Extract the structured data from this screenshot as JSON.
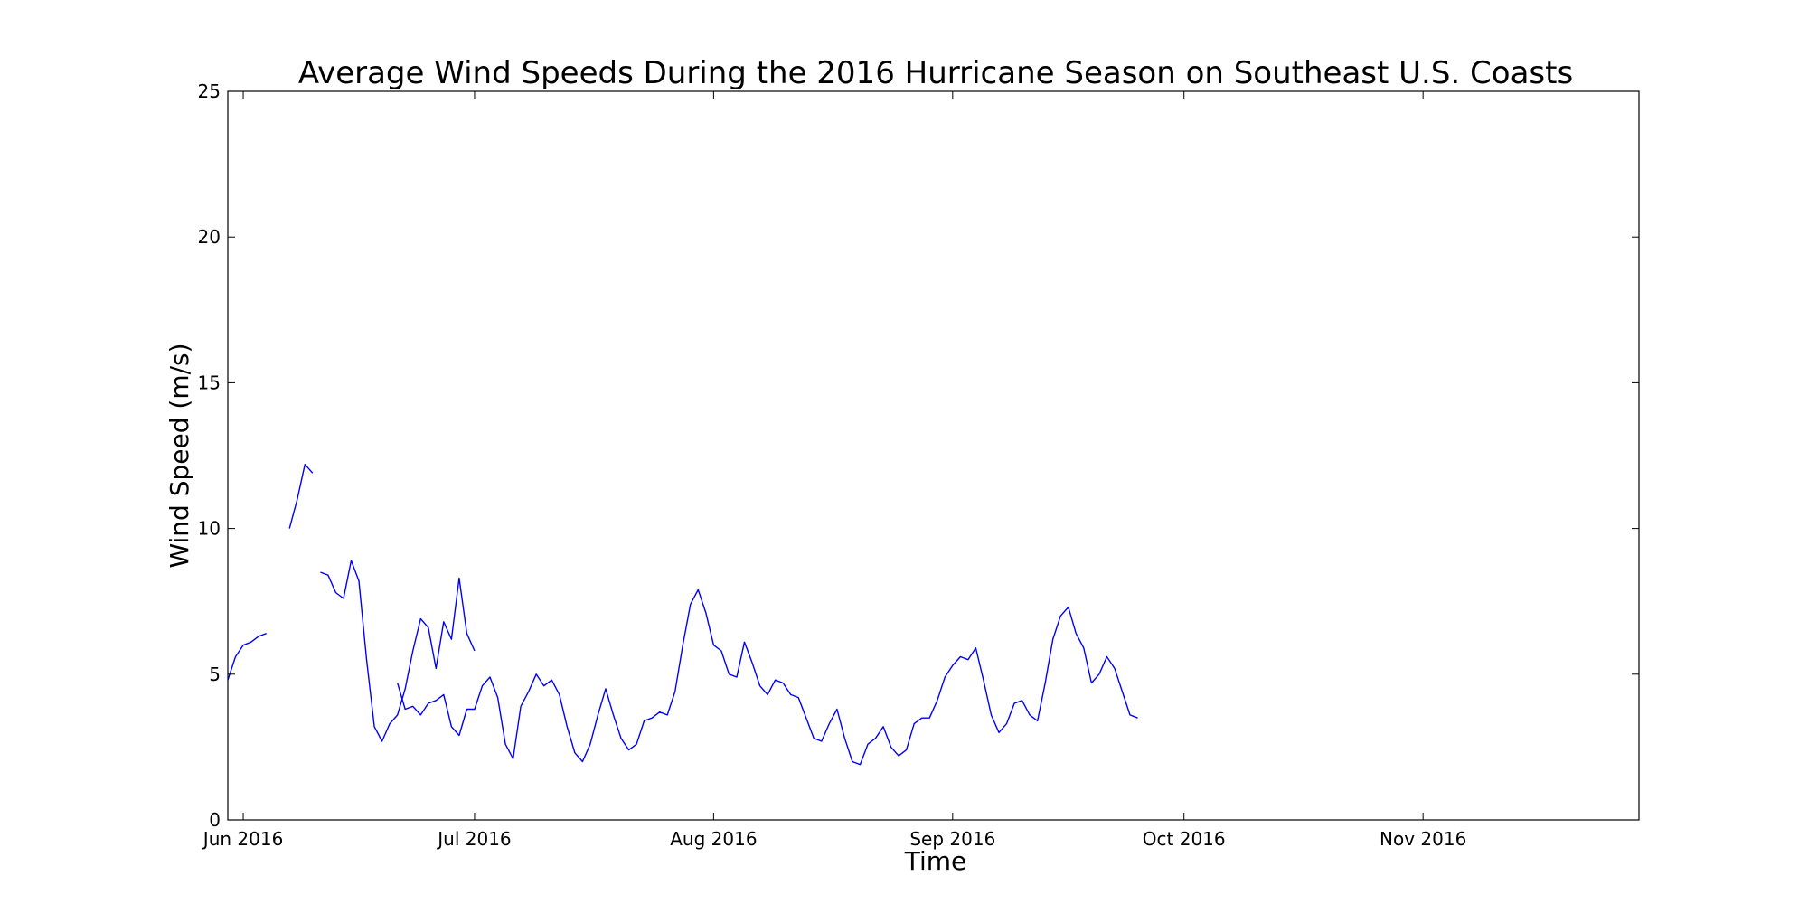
{
  "chart_data": {
    "type": "line",
    "title": "Average Wind Speeds During the 2016 Hurricane Season on Southeast U.S. Coasts",
    "xlabel": "Time",
    "ylabel": "Wind Speed (m/s)",
    "xlim": [
      "2016-05-30",
      "2016-11-29"
    ],
    "ylim": [
      0,
      25
    ],
    "grid": false,
    "line_color": "#0000ff",
    "x_ticks": [
      {
        "date": "2016-06-01",
        "label": "Jun 2016"
      },
      {
        "date": "2016-07-01",
        "label": "Jul 2016"
      },
      {
        "date": "2016-08-01",
        "label": "Aug 2016"
      },
      {
        "date": "2016-09-01",
        "label": "Sep 2016"
      },
      {
        "date": "2016-10-01",
        "label": "Oct 2016"
      },
      {
        "date": "2016-11-01",
        "label": "Nov 2016"
      }
    ],
    "y_ticks": [
      0,
      5,
      10,
      15,
      20,
      25
    ],
    "series": [
      {
        "segments": [
          [
            [
              "2016-05-30",
              4.8
            ],
            [
              "2016-05-31",
              5.6
            ],
            [
              "2016-06-01",
              6.0
            ],
            [
              "2016-06-02",
              6.1
            ],
            [
              "2016-06-03",
              6.3
            ],
            [
              "2016-06-04",
              6.4
            ]
          ],
          [
            [
              "2016-06-07",
              10.0
            ],
            [
              "2016-06-08",
              11.0
            ],
            [
              "2016-06-09",
              12.2
            ],
            [
              "2016-06-10",
              11.9
            ]
          ],
          [
            [
              "2016-06-11",
              8.5
            ],
            [
              "2016-06-12",
              8.4
            ],
            [
              "2016-06-13",
              7.8
            ],
            [
              "2016-06-14",
              7.6
            ],
            [
              "2016-06-15",
              8.9
            ],
            [
              "2016-06-16",
              8.2
            ],
            [
              "2016-06-17",
              5.5
            ],
            [
              "2016-06-18",
              3.2
            ],
            [
              "2016-06-19",
              2.7
            ],
            [
              "2016-06-20",
              3.3
            ],
            [
              "2016-06-21",
              3.6
            ],
            [
              "2016-06-22",
              4.5
            ],
            [
              "2016-06-23",
              5.8
            ],
            [
              "2016-06-24",
              6.9
            ],
            [
              "2016-06-25",
              6.6
            ],
            [
              "2016-06-26",
              5.2
            ],
            [
              "2016-06-27",
              6.8
            ],
            [
              "2016-06-28",
              6.2
            ],
            [
              "2016-06-29",
              8.3
            ],
            [
              "2016-06-30",
              6.4
            ],
            [
              "2016-07-01",
              5.8
            ]
          ],
          [
            [
              "2016-06-21",
              4.7
            ],
            [
              "2016-06-22",
              3.8
            ],
            [
              "2016-06-23",
              3.9
            ],
            [
              "2016-06-24",
              3.6
            ],
            [
              "2016-06-25",
              4.0
            ],
            [
              "2016-06-26",
              4.1
            ],
            [
              "2016-06-27",
              4.3
            ],
            [
              "2016-06-28",
              3.2
            ],
            [
              "2016-06-29",
              2.9
            ],
            [
              "2016-06-30",
              3.8
            ],
            [
              "2016-07-01",
              3.8
            ],
            [
              "2016-07-02",
              4.6
            ],
            [
              "2016-07-03",
              4.9
            ],
            [
              "2016-07-04",
              4.2
            ],
            [
              "2016-07-05",
              2.6
            ],
            [
              "2016-07-06",
              2.1
            ],
            [
              "2016-07-07",
              3.9
            ],
            [
              "2016-07-08",
              4.4
            ],
            [
              "2016-07-09",
              5.0
            ],
            [
              "2016-07-10",
              4.6
            ],
            [
              "2016-07-11",
              4.8
            ],
            [
              "2016-07-12",
              4.3
            ],
            [
              "2016-07-13",
              3.2
            ],
            [
              "2016-07-14",
              2.3
            ],
            [
              "2016-07-15",
              2.0
            ],
            [
              "2016-07-16",
              2.6
            ],
            [
              "2016-07-17",
              3.6
            ],
            [
              "2016-07-18",
              4.5
            ],
            [
              "2016-07-19",
              3.6
            ],
            [
              "2016-07-20",
              2.8
            ],
            [
              "2016-07-21",
              2.4
            ],
            [
              "2016-07-22",
              2.6
            ],
            [
              "2016-07-23",
              3.4
            ],
            [
              "2016-07-24",
              3.5
            ],
            [
              "2016-07-25",
              3.7
            ],
            [
              "2016-07-26",
              3.6
            ],
            [
              "2016-07-27",
              4.4
            ],
            [
              "2016-07-28",
              6.0
            ],
            [
              "2016-07-29",
              7.4
            ],
            [
              "2016-07-30",
              7.9
            ],
            [
              "2016-07-31",
              7.1
            ],
            [
              "2016-08-01",
              6.0
            ],
            [
              "2016-08-02",
              5.8
            ],
            [
              "2016-08-03",
              5.0
            ],
            [
              "2016-08-04",
              4.9
            ],
            [
              "2016-08-05",
              6.1
            ],
            [
              "2016-08-06",
              5.4
            ],
            [
              "2016-08-07",
              4.6
            ],
            [
              "2016-08-08",
              4.3
            ],
            [
              "2016-08-09",
              4.8
            ],
            [
              "2016-08-10",
              4.7
            ],
            [
              "2016-08-11",
              4.3
            ],
            [
              "2016-08-12",
              4.2
            ],
            [
              "2016-08-13",
              3.5
            ],
            [
              "2016-08-14",
              2.8
            ],
            [
              "2016-08-15",
              2.7
            ],
            [
              "2016-08-16",
              3.3
            ],
            [
              "2016-08-17",
              3.8
            ],
            [
              "2016-08-18",
              2.8
            ],
            [
              "2016-08-19",
              2.0
            ],
            [
              "2016-08-20",
              1.9
            ],
            [
              "2016-08-21",
              2.6
            ],
            [
              "2016-08-22",
              2.8
            ],
            [
              "2016-08-23",
              3.2
            ],
            [
              "2016-08-24",
              2.5
            ],
            [
              "2016-08-25",
              2.2
            ],
            [
              "2016-08-26",
              2.4
            ],
            [
              "2016-08-27",
              3.3
            ],
            [
              "2016-08-28",
              3.5
            ],
            [
              "2016-08-29",
              3.5
            ],
            [
              "2016-08-30",
              4.1
            ],
            [
              "2016-08-31",
              4.9
            ],
            [
              "2016-09-01",
              5.3
            ],
            [
              "2016-09-02",
              5.6
            ],
            [
              "2016-09-03",
              5.5
            ],
            [
              "2016-09-04",
              5.9
            ],
            [
              "2016-09-05",
              4.8
            ],
            [
              "2016-09-06",
              3.6
            ],
            [
              "2016-09-07",
              3.0
            ],
            [
              "2016-09-08",
              3.3
            ],
            [
              "2016-09-09",
              4.0
            ],
            [
              "2016-09-10",
              4.1
            ],
            [
              "2016-09-11",
              3.6
            ],
            [
              "2016-09-12",
              3.4
            ],
            [
              "2016-09-13",
              4.7
            ],
            [
              "2016-09-14",
              6.2
            ],
            [
              "2016-09-15",
              7.0
            ],
            [
              "2016-09-16",
              7.3
            ],
            [
              "2016-09-17",
              6.4
            ],
            [
              "2016-09-18",
              5.9
            ],
            [
              "2016-09-19",
              4.7
            ],
            [
              "2016-09-20",
              5.0
            ],
            [
              "2016-09-21",
              5.6
            ],
            [
              "2016-09-22",
              5.2
            ],
            [
              "2016-09-23",
              4.4
            ],
            [
              "2016-09-24",
              3.6
            ],
            [
              "2016-09-25",
              3.5
            ]
          ]
        ]
      }
    ]
  }
}
